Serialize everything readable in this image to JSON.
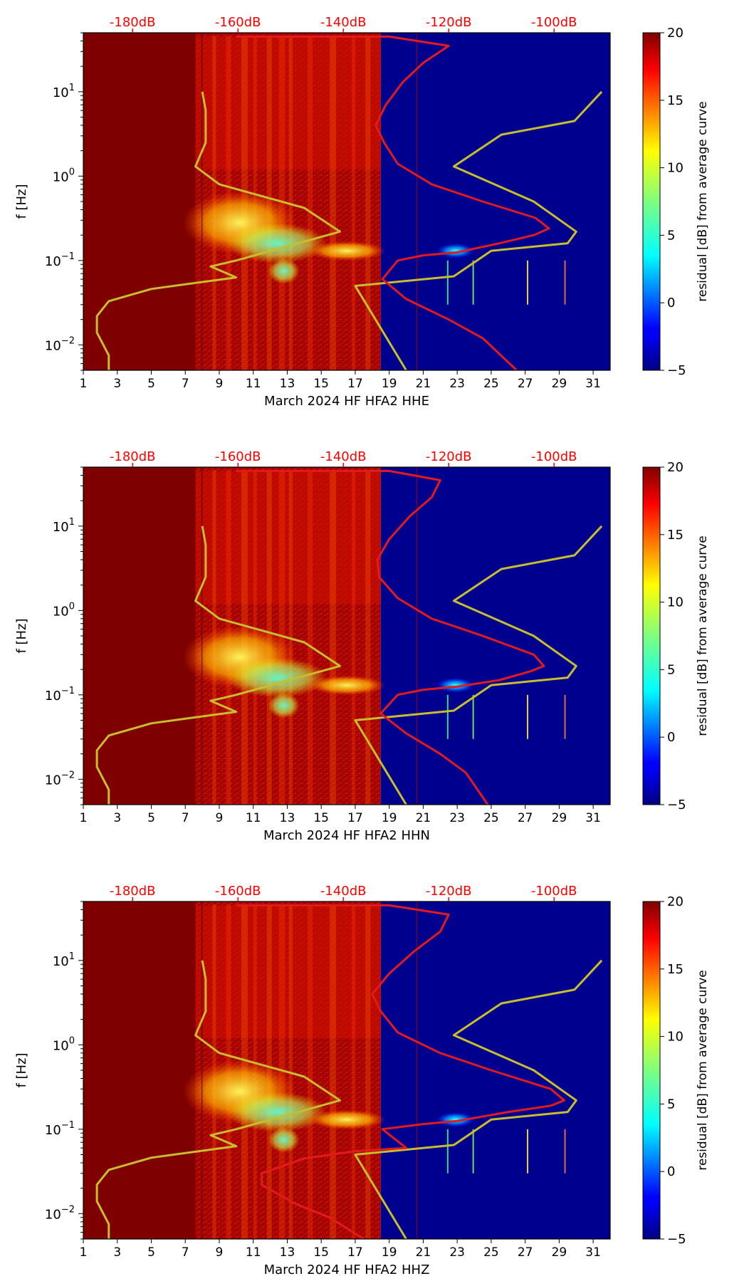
{
  "chart_data": [
    {
      "type": "heatmap",
      "xlabel": "March 2024 HF HFA2  HHE",
      "ylabel": "f [Hz]",
      "x_ticks": [
        "1",
        "3",
        "5",
        "7",
        "9",
        "11",
        "13",
        "15",
        "17",
        "19",
        "21",
        "23",
        "25",
        "27",
        "29",
        "31"
      ],
      "x_range": [
        1,
        32
      ],
      "y_ticks": [
        "10^-2",
        "10^-1",
        "10^0",
        "10^1"
      ],
      "y_range_hz": [
        0.005,
        50
      ],
      "top_axis_labels": [
        "-180dB",
        "-160dB",
        "-140dB",
        "-120dB",
        "-100dB"
      ],
      "colorbar": {
        "label": "residual [dB] from average curve",
        "ticks": [
          "-5",
          "0",
          "5",
          "10",
          "15",
          "20"
        ],
        "range": [
          -5,
          20
        ]
      },
      "red_curve": [
        [
          26.5,
          0.005
        ],
        [
          24.5,
          0.012
        ],
        [
          22.5,
          0.02
        ],
        [
          20,
          0.035
        ],
        [
          18.6,
          0.06
        ],
        [
          19.5,
          0.1
        ],
        [
          21,
          0.115
        ],
        [
          23,
          0.125
        ],
        [
          25.5,
          0.16
        ],
        [
          27.5,
          0.2
        ],
        [
          28.4,
          0.24
        ],
        [
          27.6,
          0.32
        ],
        [
          24.5,
          0.5
        ],
        [
          21.5,
          0.8
        ],
        [
          19.5,
          1.4
        ],
        [
          18.7,
          2.5
        ],
        [
          18.2,
          4
        ],
        [
          18.8,
          7
        ],
        [
          19.8,
          13
        ],
        [
          21,
          22
        ],
        [
          22.5,
          35
        ],
        [
          19,
          45
        ],
        [
          10,
          45
        ]
      ],
      "yellow_curve": [
        [
          2.5,
          0.005
        ],
        [
          2.5,
          0.0075
        ],
        [
          1.8,
          0.014
        ],
        [
          1.8,
          0.022
        ],
        [
          2.5,
          0.033
        ],
        [
          5,
          0.046
        ],
        [
          10,
          0.063
        ],
        [
          8.5,
          0.085
        ],
        [
          10,
          0.1
        ],
        [
          16.1,
          0.22
        ],
        [
          14,
          0.42
        ],
        [
          9,
          0.8
        ],
        [
          7.6,
          1.3
        ],
        [
          8.2,
          2.5
        ],
        [
          8.2,
          6
        ],
        [
          8,
          10
        ]
      ],
      "yellow_curve_right": [
        [
          20,
          0.005
        ],
        [
          17,
          0.05
        ],
        [
          22.8,
          0.065
        ],
        [
          25,
          0.13
        ],
        [
          29.5,
          0.16
        ],
        [
          30,
          0.22
        ],
        [
          27.5,
          0.5
        ],
        [
          22.8,
          1.3
        ],
        [
          25.6,
          3.1
        ],
        [
          29.9,
          4.5
        ],
        [
          31.5,
          10
        ]
      ]
    },
    {
      "type": "heatmap",
      "xlabel": "March 2024 HF HFA2  HHN",
      "ylabel": "f [Hz]",
      "x_ticks": [
        "1",
        "3",
        "5",
        "7",
        "9",
        "11",
        "13",
        "15",
        "17",
        "19",
        "21",
        "23",
        "25",
        "27",
        "29",
        "31"
      ],
      "x_range": [
        1,
        32
      ],
      "y_ticks": [
        "10^-2",
        "10^-1",
        "10^0",
        "10^1"
      ],
      "y_range_hz": [
        0.005,
        50
      ],
      "top_axis_labels": [
        "-180dB",
        "-160dB",
        "-140dB",
        "-120dB",
        "-100dB"
      ],
      "colorbar": {
        "label": "residual [dB] from average curve",
        "ticks": [
          "-5",
          "0",
          "5",
          "10",
          "15",
          "20"
        ],
        "range": [
          -5,
          20
        ]
      },
      "red_curve": [
        [
          24.8,
          0.005
        ],
        [
          23.5,
          0.012
        ],
        [
          22,
          0.02
        ],
        [
          20,
          0.035
        ],
        [
          18.5,
          0.06
        ],
        [
          19.5,
          0.1
        ],
        [
          21,
          0.115
        ],
        [
          23,
          0.125
        ],
        [
          25.5,
          0.15
        ],
        [
          27.3,
          0.19
        ],
        [
          28.1,
          0.22
        ],
        [
          27.5,
          0.3
        ],
        [
          24.5,
          0.5
        ],
        [
          21.5,
          0.8
        ],
        [
          19.5,
          1.4
        ],
        [
          18.4,
          2.5
        ],
        [
          18.3,
          4
        ],
        [
          19,
          7
        ],
        [
          20.2,
          13
        ],
        [
          21.5,
          22
        ],
        [
          22,
          35
        ],
        [
          19,
          45
        ],
        [
          10,
          45
        ]
      ],
      "yellow_curve": [
        [
          2.5,
          0.005
        ],
        [
          2.5,
          0.0075
        ],
        [
          1.8,
          0.014
        ],
        [
          1.8,
          0.022
        ],
        [
          2.5,
          0.033
        ],
        [
          5,
          0.046
        ],
        [
          10,
          0.063
        ],
        [
          8.5,
          0.085
        ],
        [
          10,
          0.1
        ],
        [
          16.1,
          0.22
        ],
        [
          14,
          0.42
        ],
        [
          9,
          0.8
        ],
        [
          7.6,
          1.3
        ],
        [
          8.2,
          2.5
        ],
        [
          8.2,
          6
        ],
        [
          8,
          10
        ]
      ],
      "yellow_curve_right": [
        [
          20,
          0.005
        ],
        [
          17,
          0.05
        ],
        [
          22.8,
          0.065
        ],
        [
          25,
          0.13
        ],
        [
          29.5,
          0.16
        ],
        [
          30,
          0.22
        ],
        [
          27.5,
          0.5
        ],
        [
          22.8,
          1.3
        ],
        [
          25.6,
          3.1
        ],
        [
          29.9,
          4.5
        ],
        [
          31.5,
          10
        ]
      ]
    },
    {
      "type": "heatmap",
      "xlabel": "March 2024 HF HFA2  HHZ",
      "ylabel": "f [Hz]",
      "x_ticks": [
        "1",
        "3",
        "5",
        "7",
        "9",
        "11",
        "13",
        "15",
        "17",
        "19",
        "21",
        "23",
        "25",
        "27",
        "29",
        "31"
      ],
      "x_range": [
        1,
        32
      ],
      "y_ticks": [
        "10^-2",
        "10^-1",
        "10^0",
        "10^1"
      ],
      "y_range_hz": [
        0.005,
        50
      ],
      "top_axis_labels": [
        "-180dB",
        "-160dB",
        "-140dB",
        "-120dB",
        "-100dB"
      ],
      "colorbar": {
        "label": "residual [dB] from average curve",
        "ticks": [
          "-5",
          "0",
          "5",
          "10",
          "15",
          "20"
        ],
        "range": [
          -5,
          20
        ]
      },
      "red_curve": [
        [
          17.5,
          0.005
        ],
        [
          15.5,
          0.009
        ],
        [
          13.5,
          0.013
        ],
        [
          11.5,
          0.022
        ],
        [
          11.5,
          0.03
        ],
        [
          14,
          0.045
        ],
        [
          17,
          0.055
        ],
        [
          20,
          0.06
        ],
        [
          18.6,
          0.1
        ],
        [
          21,
          0.115
        ],
        [
          23,
          0.125
        ],
        [
          26,
          0.16
        ],
        [
          28.5,
          0.19
        ],
        [
          29.3,
          0.22
        ],
        [
          28.5,
          0.3
        ],
        [
          25,
          0.5
        ],
        [
          22,
          0.8
        ],
        [
          19.5,
          1.4
        ],
        [
          18.5,
          2.5
        ],
        [
          18,
          4
        ],
        [
          19,
          7
        ],
        [
          20.5,
          13
        ],
        [
          22,
          22
        ],
        [
          22.5,
          35
        ],
        [
          19,
          45
        ],
        [
          10,
          45
        ]
      ],
      "yellow_curve": [
        [
          2.5,
          0.005
        ],
        [
          2.5,
          0.0075
        ],
        [
          1.8,
          0.014
        ],
        [
          1.8,
          0.022
        ],
        [
          2.5,
          0.033
        ],
        [
          5,
          0.046
        ],
        [
          10,
          0.063
        ],
        [
          8.5,
          0.085
        ],
        [
          10,
          0.1
        ],
        [
          16.1,
          0.22
        ],
        [
          14,
          0.42
        ],
        [
          9,
          0.8
        ],
        [
          7.6,
          1.3
        ],
        [
          8.2,
          2.5
        ],
        [
          8.2,
          6
        ],
        [
          8,
          10
        ]
      ],
      "yellow_curve_right": [
        [
          20,
          0.005
        ],
        [
          17,
          0.05
        ],
        [
          22.8,
          0.065
        ],
        [
          25,
          0.13
        ],
        [
          29.5,
          0.16
        ],
        [
          30,
          0.22
        ],
        [
          27.5,
          0.5
        ],
        [
          22.8,
          1.3
        ],
        [
          25.6,
          3.1
        ],
        [
          29.9,
          4.5
        ],
        [
          31.5,
          10
        ]
      ]
    }
  ],
  "colors": {
    "saturated_red": "#7f0000",
    "low_blue": "#00008f",
    "red_curve": "#e31a1c",
    "yellow_curve": "#c8be2d",
    "top_label": "#ff0000"
  }
}
